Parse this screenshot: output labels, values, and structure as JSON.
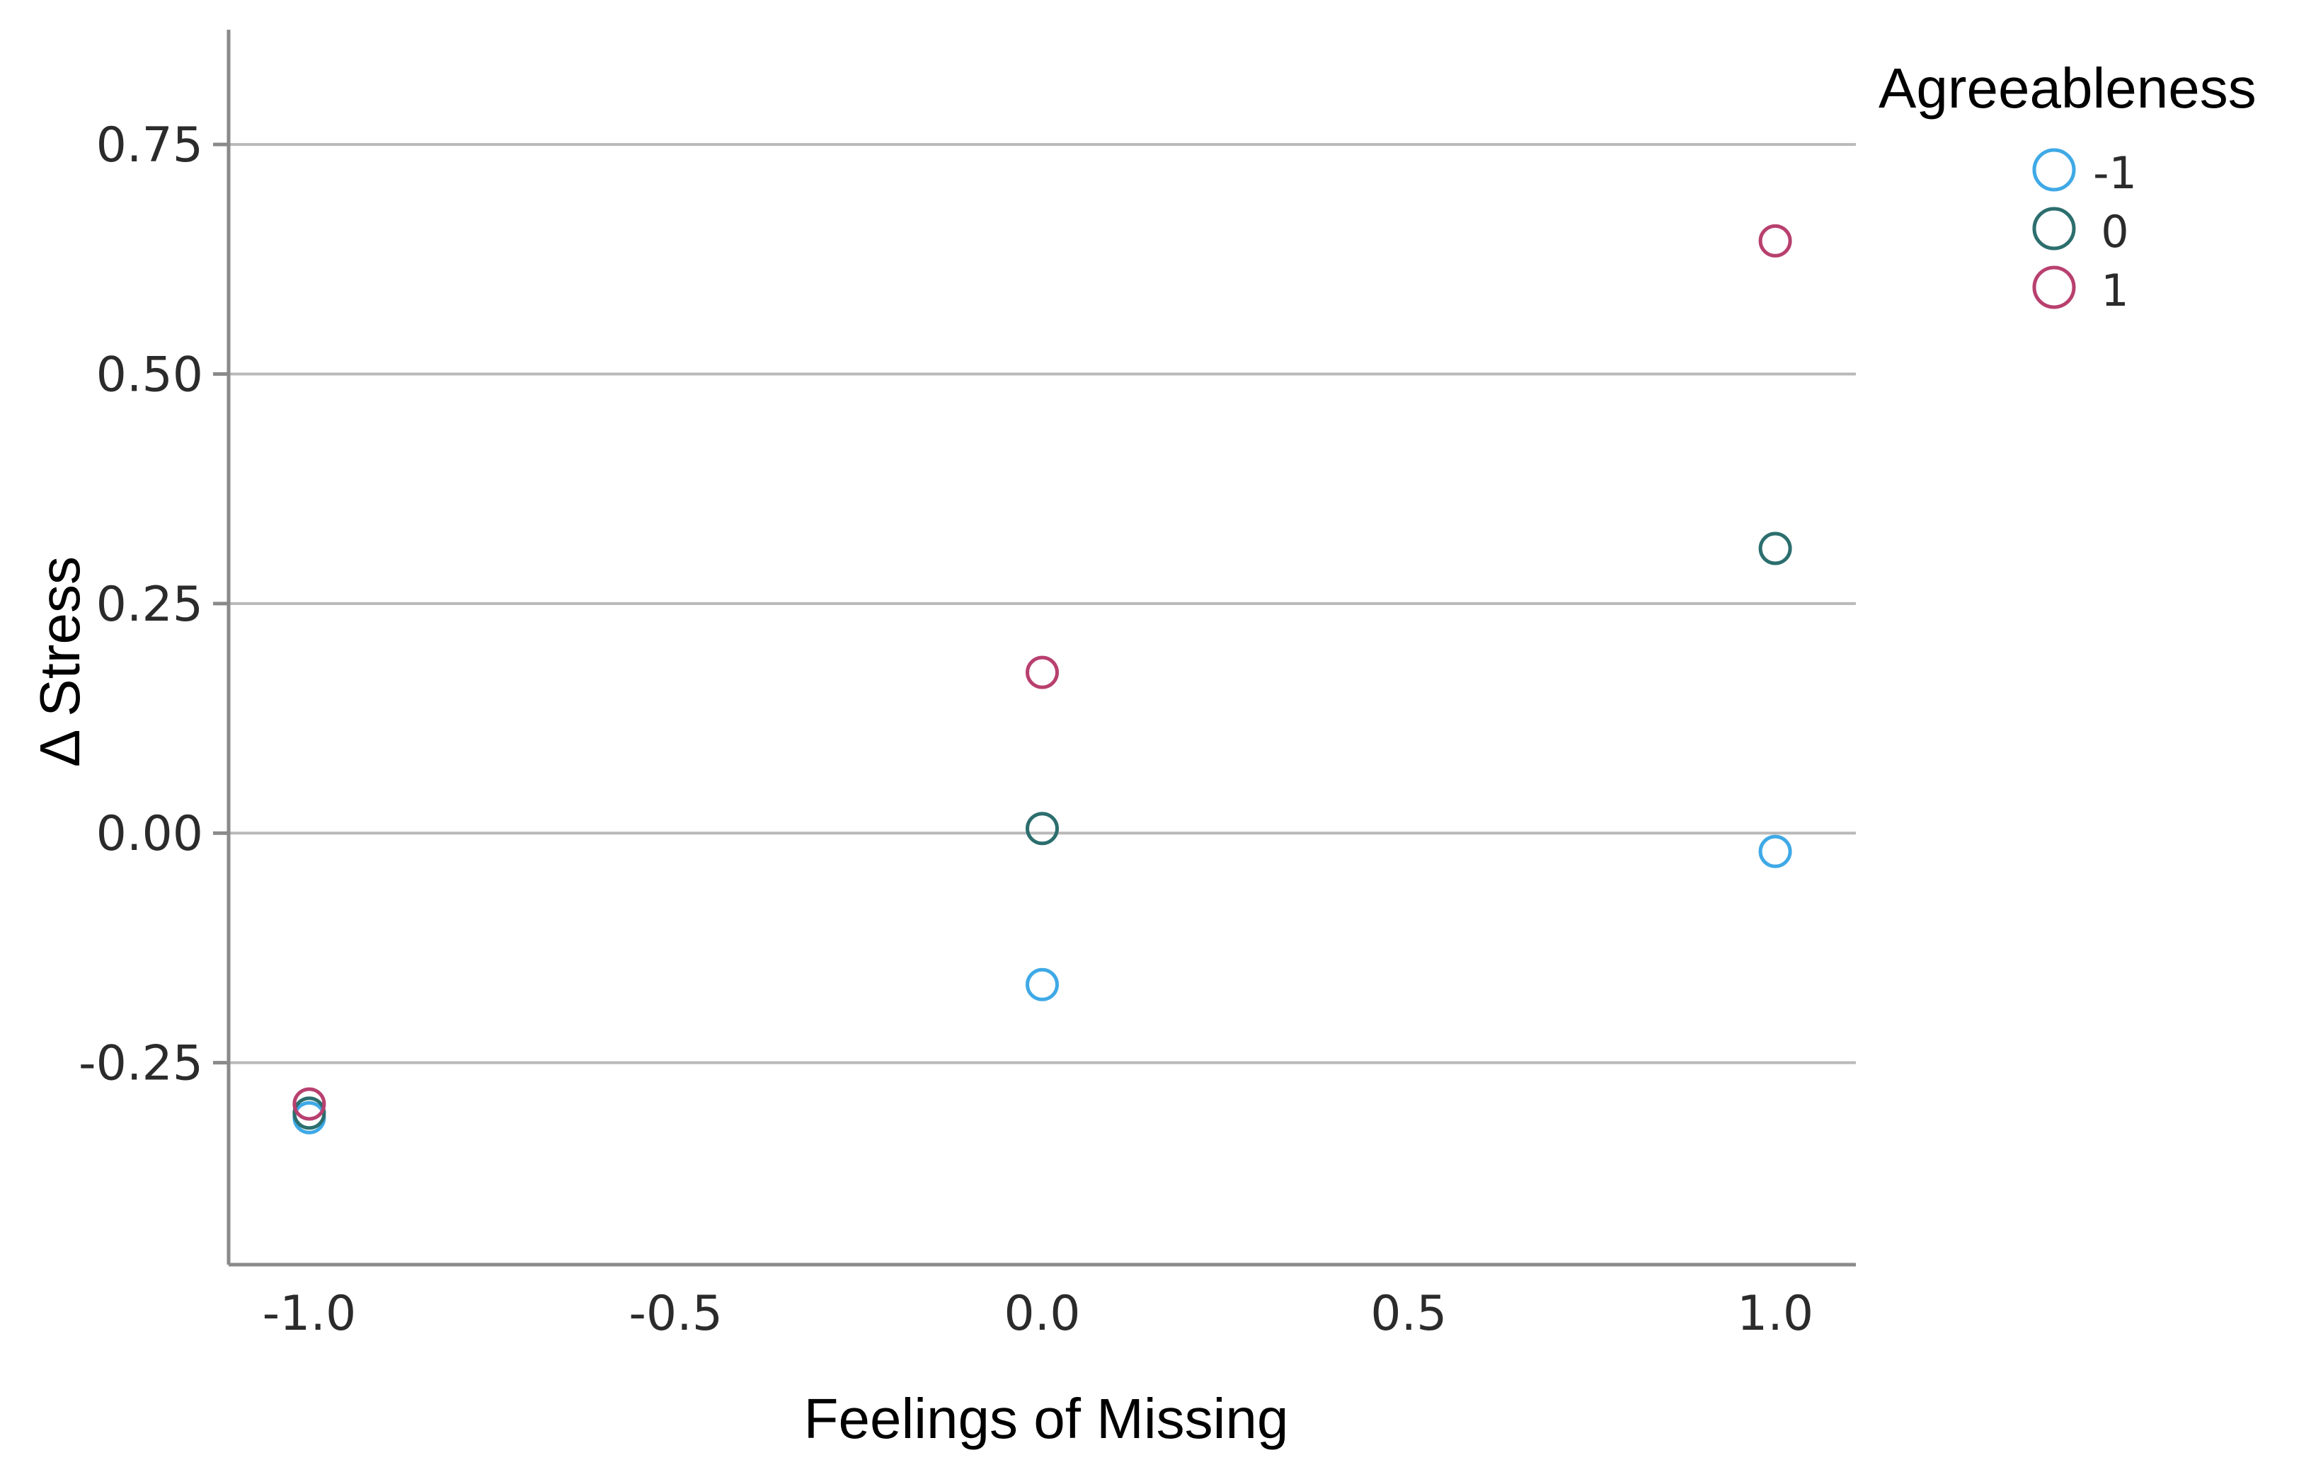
{
  "chart_data": {
    "type": "scatter",
    "title": "",
    "xlabel": "Feelings of Missing",
    "ylabel": "Δ Stress",
    "xlim": [
      -1.11,
      1.11
    ],
    "ylim": [
      -0.47,
      0.875
    ],
    "x_ticks": [
      -1.0,
      -0.5,
      0.0,
      0.5,
      1.0
    ],
    "x_tick_labels": [
      "-1.0",
      "-0.5",
      "0.0",
      "0.5",
      "1.0"
    ],
    "y_ticks": [
      -0.25,
      0.0,
      0.25,
      0.5,
      0.75
    ],
    "y_tick_labels": [
      "-0.25",
      "0.00",
      "0.25",
      "0.50",
      "0.75"
    ],
    "grid": "horizontal",
    "legend": {
      "title": "Agreeableness",
      "placement": "top-right outside"
    },
    "series": [
      {
        "name": "-1",
        "color": "#3fa9e6",
        "points": [
          {
            "x": -1.0,
            "y": -0.31
          },
          {
            "x": 0.0,
            "y": -0.165
          },
          {
            "x": 1.0,
            "y": -0.02
          }
        ]
      },
      {
        "name": "0",
        "color": "#2c6e6e",
        "points": [
          {
            "x": -1.0,
            "y": -0.305
          },
          {
            "x": 0.0,
            "y": 0.005
          },
          {
            "x": 1.0,
            "y": 0.31
          }
        ]
      },
      {
        "name": "1",
        "color": "#b8406f",
        "points": [
          {
            "x": -1.0,
            "y": -0.295
          },
          {
            "x": 0.0,
            "y": 0.175
          },
          {
            "x": 1.0,
            "y": 0.645
          }
        ]
      }
    ]
  }
}
